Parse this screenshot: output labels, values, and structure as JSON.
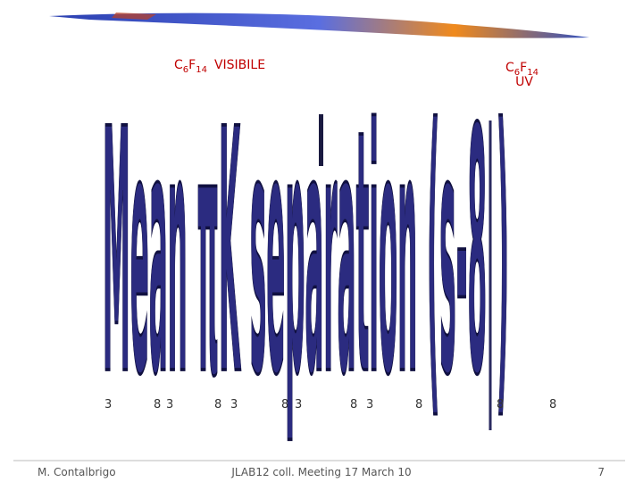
{
  "header": {
    "visible_label": {
      "c": "C",
      "c_sub": "6",
      "f": "F",
      "f_sub": "14",
      "name": "VISIBILE"
    },
    "uv_label": {
      "c": "C",
      "c_sub": "6",
      "f": "F",
      "f_sub": "14",
      "name": "UV"
    }
  },
  "body": {
    "stretched_title": "Mean πK separation (s-8   )",
    "numbers": [
      "3",
      "8",
      "3",
      "8",
      "3",
      "8",
      "3",
      "8",
      "3",
      "8",
      "8",
      "8"
    ]
  },
  "footer": {
    "author": "M. Contalbrigo",
    "meeting": "JLAB12 coll. Meeting 17 March 10",
    "page": "7"
  }
}
